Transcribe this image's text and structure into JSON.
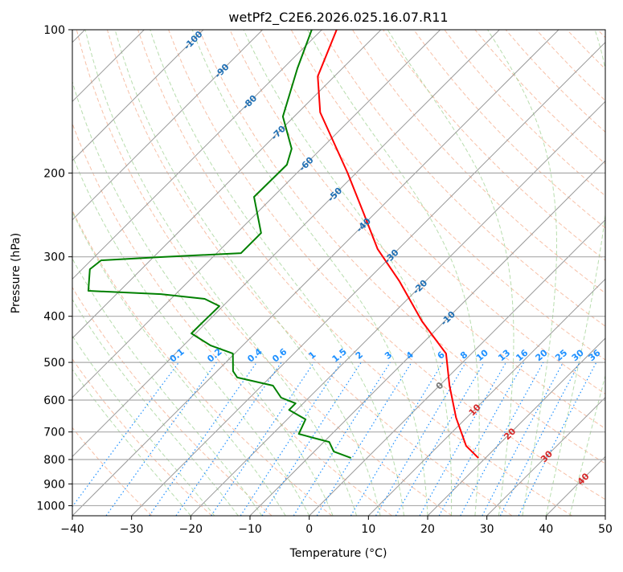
{
  "chart_data": {
    "type": "line",
    "subtype": "skew-T log-P",
    "title": "wetPf2_C2E6.2026.025.16.07.R11",
    "xlabel": "Temperature (°C)",
    "ylabel": "Pressure (hPa)",
    "xlim": [
      -40,
      50
    ],
    "ylim": [
      1050,
      100
    ],
    "xticks": [
      "−40",
      "−30",
      "−20",
      "−10",
      "0",
      "10",
      "20",
      "30",
      "40",
      "50"
    ],
    "xtick_values": [
      -40,
      -30,
      -20,
      -10,
      0,
      10,
      20,
      30,
      40,
      50
    ],
    "yticks": [
      "100",
      "200",
      "300",
      "400",
      "500",
      "600",
      "700",
      "800",
      "900",
      "1000"
    ],
    "ytick_values": [
      100,
      200,
      300,
      400,
      500,
      600,
      700,
      800,
      900,
      1000
    ],
    "grid": true,
    "isotherm_labels": [
      "-100",
      "-90",
      "-80",
      "-70",
      "-60",
      "-50",
      "-40",
      "-30",
      "-20",
      "-10",
      "0",
      "10",
      "20",
      "30",
      "40"
    ],
    "isotherm_label_values": [
      -100,
      -90,
      -80,
      -70,
      -60,
      -50,
      -40,
      -30,
      -20,
      -10,
      0,
      10,
      20,
      30,
      40
    ],
    "mixing_ratio_labels": [
      "0.1",
      "0.2",
      "0.4",
      "0.6",
      "1",
      "1.5",
      "2",
      "3",
      "4",
      "6",
      "8",
      "10",
      "13",
      "16",
      "20",
      "25",
      "30",
      "36"
    ],
    "mixing_ratio_values": [
      0.1,
      0.2,
      0.4,
      0.6,
      1,
      1.5,
      2,
      3,
      4,
      6,
      8,
      10,
      13,
      16,
      20,
      25,
      30,
      36
    ],
    "series": [
      {
        "name": "temperature",
        "color": "#ff0000",
        "pressure": [
          100,
          125.3,
          149.2,
          199.7,
          242.6,
          289,
          337.6,
          410,
          479,
          559.5,
          653,
          749,
          794
        ],
        "values": [
          -77.5,
          -72.8,
          -66.3,
          -51.5,
          -42.0,
          -33.5,
          -24.4,
          -13.8,
          -4.3,
          1.7,
          8.2,
          14.7,
          18.8
        ]
      },
      {
        "name": "dewpoint",
        "color": "#008000",
        "pressure": [
          100,
          120.5,
          152.2,
          177.8,
          192.1,
          224.5,
          267.4,
          294.7,
          300.4,
          305.1,
          318.5,
          353.7,
          359.3,
          367.7,
          380.8,
          418,
          434.6,
          460.8,
          479,
          521.7,
          538,
          559.5,
          593,
          609.5,
          629,
          658.7,
          706.5,
          720.6,
          734.6,
          769.6,
          794
        ],
        "values": [
          -81.7,
          -77.6,
          -71.9,
          -65,
          -63.1,
          -63.2,
          -55.9,
          -55.9,
          -68.8,
          -78.3,
          -78.7,
          -75.3,
          -62.5,
          -54.3,
          -50.6,
          -50.7,
          -50.7,
          -45.4,
          -40.3,
          -37.3,
          -35.5,
          -28.1,
          -24.7,
          -21.3,
          -21.3,
          -16.9,
          -15.6,
          -12.4,
          -9.1,
          -6.7,
          -2.7
        ]
      }
    ]
  }
}
